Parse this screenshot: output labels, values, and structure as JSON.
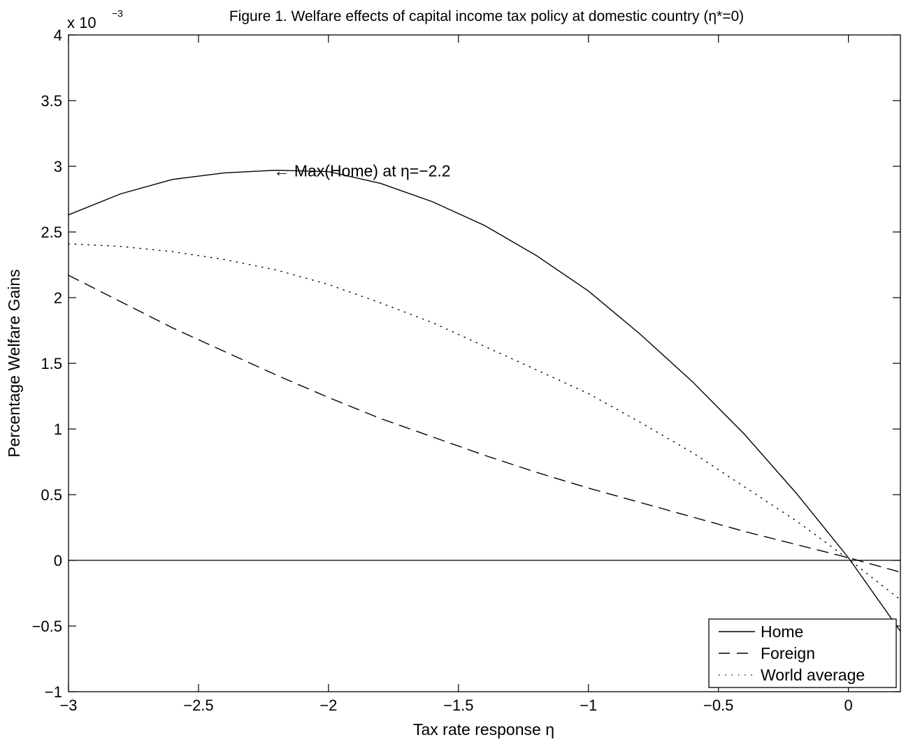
{
  "chart_data": {
    "type": "line",
    "title": "Figure 1. Welfare effects of capital income tax policy at domestic country (η*=0)",
    "xlabel": "Tax rate response η",
    "ylabel": "Percentage Welfare Gains",
    "y_multiplier": {
      "base": "x 10",
      "exponent": "−3"
    },
    "xlim": [
      -3,
      0.2
    ],
    "ylim": [
      -1,
      4
    ],
    "x_ticks": [
      -3,
      -2.5,
      -2,
      -1.5,
      -1,
      -0.5,
      0
    ],
    "x_tick_labels": [
      "−3",
      "−2.5",
      "−2",
      "−1.5",
      "−1",
      "−0.5",
      "0"
    ],
    "y_ticks": [
      -1,
      -0.5,
      0,
      0.5,
      1,
      1.5,
      2,
      2.5,
      3,
      3.5,
      4
    ],
    "y_tick_labels": [
      "−1",
      "−0.5",
      "0",
      "0.5",
      "1",
      "1.5",
      "2",
      "2.5",
      "3",
      "3.5",
      "4"
    ],
    "grid": false,
    "legend_position": "bottom-right",
    "zero_line": true,
    "x": [
      -3.0,
      -2.8,
      -2.6,
      -2.4,
      -2.2,
      -2.0,
      -1.8,
      -1.6,
      -1.4,
      -1.2,
      -1.0,
      -0.8,
      -0.6,
      -0.4,
      -0.2,
      0.0,
      0.2
    ],
    "series": [
      {
        "name": "Home",
        "style": "solid",
        "values": [
          2.63,
          2.79,
          2.9,
          2.95,
          2.97,
          2.96,
          2.87,
          2.73,
          2.55,
          2.32,
          2.05,
          1.72,
          1.36,
          0.96,
          0.51,
          0.02,
          -0.54
        ]
      },
      {
        "name": "Foreign",
        "style": "dashed",
        "values": [
          2.17,
          1.97,
          1.77,
          1.59,
          1.41,
          1.24,
          1.08,
          0.94,
          0.8,
          0.67,
          0.55,
          0.44,
          0.33,
          0.22,
          0.12,
          0.02,
          -0.09
        ]
      },
      {
        "name": "World average",
        "style": "dotted",
        "values": [
          2.41,
          2.39,
          2.35,
          2.29,
          2.21,
          2.1,
          1.96,
          1.81,
          1.63,
          1.45,
          1.27,
          1.05,
          0.82,
          0.56,
          0.3,
          0.01,
          -0.3
        ]
      }
    ],
    "annotations": [
      {
        "text": "← Max(Home) at η=−2.2",
        "x": -2.2,
        "y": 2.97
      }
    ]
  }
}
